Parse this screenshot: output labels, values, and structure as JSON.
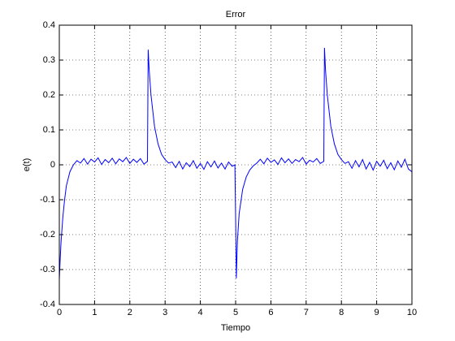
{
  "chart_data": {
    "type": "line",
    "title": "Error",
    "xlabel": "Tiempo",
    "ylabel": "e(t)",
    "x": [
      0,
      0.02,
      0.05,
      0.1,
      0.15,
      0.2,
      0.3,
      0.4,
      0.5,
      0.6,
      0.7,
      0.8,
      0.9,
      1.0,
      1.1,
      1.2,
      1.3,
      1.4,
      1.5,
      1.6,
      1.7,
      1.8,
      1.9,
      2.0,
      2.1,
      2.2,
      2.3,
      2.4,
      2.5,
      2.52,
      2.55,
      2.6,
      2.7,
      2.8,
      2.9,
      3.0,
      3.1,
      3.2,
      3.3,
      3.4,
      3.5,
      3.6,
      3.7,
      3.8,
      3.9,
      4.0,
      4.1,
      4.2,
      4.3,
      4.4,
      4.5,
      4.6,
      4.7,
      4.8,
      4.9,
      4.98,
      5.0,
      5.02,
      5.05,
      5.1,
      5.2,
      5.3,
      5.4,
      5.5,
      5.6,
      5.7,
      5.8,
      5.9,
      6.0,
      6.1,
      6.2,
      6.3,
      6.4,
      6.5,
      6.6,
      6.7,
      6.8,
      6.9,
      7.0,
      7.1,
      7.2,
      7.3,
      7.4,
      7.5,
      7.52,
      7.55,
      7.6,
      7.7,
      7.8,
      7.9,
      8.0,
      8.1,
      8.2,
      8.3,
      8.4,
      8.5,
      8.6,
      8.7,
      8.8,
      8.9,
      9.0,
      9.1,
      9.2,
      9.3,
      9.4,
      9.5,
      9.6,
      9.7,
      9.8,
      9.9,
      10.0
    ],
    "series": [
      {
        "color": "#0000ff",
        "values": [
          -0.33,
          -0.28,
          -0.22,
          -0.15,
          -0.1,
          -0.06,
          -0.02,
          0.0,
          0.012,
          0.005,
          0.018,
          0.002,
          0.016,
          0.008,
          0.02,
          0.001,
          0.015,
          0.006,
          0.019,
          0.003,
          0.017,
          0.009,
          0.021,
          0.004,
          0.016,
          0.007,
          0.018,
          0.002,
          0.01,
          0.33,
          0.27,
          0.2,
          0.11,
          0.06,
          0.03,
          0.015,
          0.005,
          0.008,
          -0.008,
          0.01,
          -0.012,
          0.006,
          -0.005,
          0.012,
          -0.01,
          0.004,
          -0.013,
          0.009,
          -0.006,
          0.011,
          -0.009,
          0.005,
          -0.012,
          0.008,
          -0.004,
          0.0,
          -0.15,
          -0.325,
          -0.22,
          -0.14,
          -0.07,
          -0.035,
          -0.015,
          -0.003,
          0.005,
          0.016,
          0.003,
          0.019,
          0.007,
          0.014,
          0.001,
          0.02,
          0.006,
          0.017,
          0.004,
          0.015,
          0.009,
          0.021,
          0.002,
          0.013,
          0.008,
          0.018,
          0.004,
          0.01,
          0.335,
          0.27,
          0.2,
          0.11,
          0.06,
          0.03,
          0.015,
          0.004,
          0.009,
          -0.01,
          0.012,
          -0.006,
          0.015,
          -0.012,
          0.007,
          -0.015,
          0.01,
          -0.004,
          0.013,
          -0.011,
          0.006,
          -0.014,
          0.011,
          -0.007,
          0.016,
          -0.012,
          -0.02
        ]
      }
    ],
    "xlim": [
      0,
      10
    ],
    "xticks": [
      0,
      1,
      2,
      3,
      4,
      5,
      6,
      7,
      8,
      9,
      10
    ],
    "ylim": [
      -0.4,
      0.4
    ],
    "yticks": [
      -0.4,
      -0.3,
      -0.2,
      -0.1,
      0,
      0.1,
      0.2,
      0.3,
      0.4
    ],
    "grid": true
  }
}
